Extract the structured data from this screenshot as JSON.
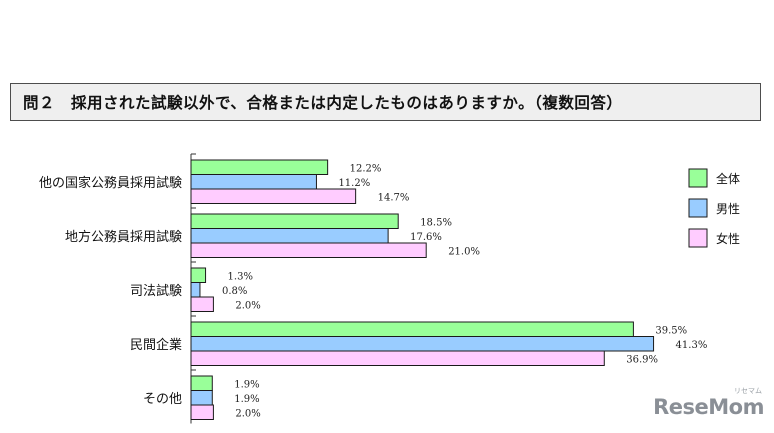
{
  "title": "問２　採用された試験以外で、合格または内定したものはありますか。（複数回答）",
  "watermark": {
    "text": "ReseMom",
    "ruby": "リセマム"
  },
  "chart_data": {
    "type": "bar",
    "orientation": "horizontal",
    "categories": [
      "他の国家公務員採用試験",
      "地方公務員採用試験",
      "司法試験",
      "民間企業",
      "その他"
    ],
    "series": [
      {
        "name": "全体",
        "color": "#99ff99",
        "values": [
          12.2,
          18.5,
          1.3,
          39.5,
          1.9
        ],
        "labels": [
          "12.2%",
          "18.5%",
          "1.3%",
          "39.5%",
          "1.9%"
        ]
      },
      {
        "name": "男性",
        "color": "#99ccff",
        "values": [
          11.2,
          17.6,
          0.8,
          41.3,
          1.9
        ],
        "labels": [
          "11.2%",
          "17.6%",
          "0.8%",
          "41.3%",
          "1.9%"
        ]
      },
      {
        "name": "女性",
        "color": "#ffccff",
        "values": [
          14.7,
          21.0,
          2.0,
          36.9,
          2.0
        ],
        "labels": [
          "14.7%",
          "21.0%",
          "2.0%",
          "36.9%",
          "2.0%"
        ]
      }
    ],
    "xlim": [
      0,
      100
    ],
    "legend_position": "right",
    "grid": false
  }
}
